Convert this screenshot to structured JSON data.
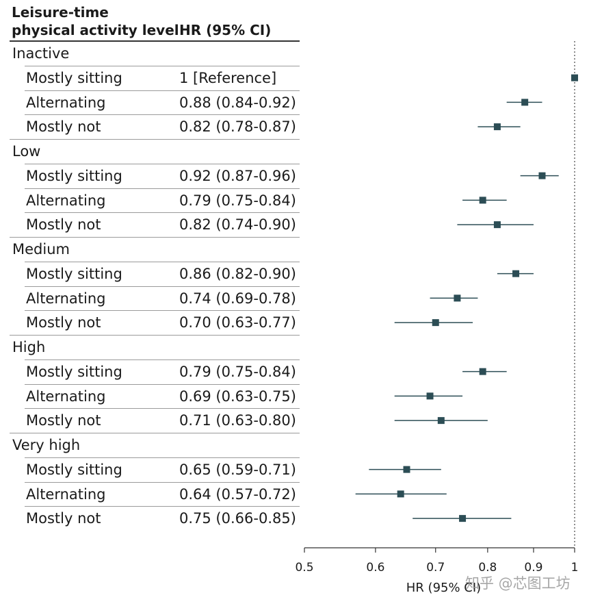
{
  "header": {
    "col1_line1": "Leisure-time",
    "col1_line2": "physical activity level",
    "col2": "HR (95% CI)"
  },
  "watermark": "知乎 @芯图工坊",
  "colors": {
    "marker": "#2c4d55",
    "ci_line": "#2c4d55",
    "ref_line": "#444444"
  },
  "rows": [
    {
      "type": "group",
      "label": "Inactive"
    },
    {
      "type": "sub",
      "label": "Mostly sitting",
      "hr_text": "1 [Reference]",
      "hr": 1.0,
      "lo": 1.0,
      "hi": 1.0
    },
    {
      "type": "sub",
      "label": "Alternating",
      "hr_text": "0.88 (0.84-0.92)",
      "hr": 0.88,
      "lo": 0.84,
      "hi": 0.92
    },
    {
      "type": "sub",
      "label": "Mostly not",
      "hr_text": "0.82 (0.78-0.87)",
      "hr": 0.82,
      "lo": 0.78,
      "hi": 0.87
    },
    {
      "type": "group",
      "label": "Low"
    },
    {
      "type": "sub",
      "label": "Mostly sitting",
      "hr_text": "0.92 (0.87-0.96)",
      "hr": 0.92,
      "lo": 0.87,
      "hi": 0.96
    },
    {
      "type": "sub",
      "label": "Alternating",
      "hr_text": "0.79 (0.75-0.84)",
      "hr": 0.79,
      "lo": 0.75,
      "hi": 0.84
    },
    {
      "type": "sub",
      "label": "Mostly not",
      "hr_text": "0.82 (0.74-0.90)",
      "hr": 0.82,
      "lo": 0.74,
      "hi": 0.9
    },
    {
      "type": "group",
      "label": "Medium"
    },
    {
      "type": "sub",
      "label": "Mostly sitting",
      "hr_text": "0.86 (0.82-0.90)",
      "hr": 0.86,
      "lo": 0.82,
      "hi": 0.9
    },
    {
      "type": "sub",
      "label": "Alternating",
      "hr_text": "0.74 (0.69-0.78)",
      "hr": 0.74,
      "lo": 0.69,
      "hi": 0.78
    },
    {
      "type": "sub",
      "label": "Mostly not",
      "hr_text": "0.70 (0.63-0.77)",
      "hr": 0.7,
      "lo": 0.63,
      "hi": 0.77
    },
    {
      "type": "group",
      "label": "High"
    },
    {
      "type": "sub",
      "label": "Mostly sitting",
      "hr_text": "0.79 (0.75-0.84)",
      "hr": 0.79,
      "lo": 0.75,
      "hi": 0.84
    },
    {
      "type": "sub",
      "label": "Alternating",
      "hr_text": "0.69 (0.63-0.75)",
      "hr": 0.69,
      "lo": 0.63,
      "hi": 0.75
    },
    {
      "type": "sub",
      "label": "Mostly not",
      "hr_text": "0.71 (0.63-0.80)",
      "hr": 0.71,
      "lo": 0.63,
      "hi": 0.8
    },
    {
      "type": "group",
      "label": "Very high"
    },
    {
      "type": "sub",
      "label": "Mostly sitting",
      "hr_text": "0.65 (0.59-0.71)",
      "hr": 0.65,
      "lo": 0.59,
      "hi": 0.71
    },
    {
      "type": "sub",
      "label": "Alternating",
      "hr_text": "0.64 (0.57-0.72)",
      "hr": 0.64,
      "lo": 0.57,
      "hi": 0.72
    },
    {
      "type": "sub",
      "label": "Mostly not",
      "hr_text": "0.75 (0.66-0.85)",
      "hr": 0.75,
      "lo": 0.66,
      "hi": 0.85
    }
  ],
  "chart_data": {
    "type": "forest",
    "xlabel": "HR (95% CI)",
    "xscale": "log",
    "xlim": [
      0.5,
      1
    ],
    "xticks": [
      0.5,
      0.6,
      0.7,
      0.8,
      0.9,
      1
    ],
    "xtick_labels": [
      "0.5",
      "0.6",
      "0.7",
      "0.8",
      "0.9",
      "1"
    ],
    "reference_line": 1,
    "reference_line_style": "dotted",
    "groups": [
      {
        "name": "Inactive",
        "items": [
          {
            "label": "Mostly sitting",
            "hr": 1.0,
            "lo": 1.0,
            "hi": 1.0
          },
          {
            "label": "Alternating",
            "hr": 0.88,
            "lo": 0.84,
            "hi": 0.92
          },
          {
            "label": "Mostly not",
            "hr": 0.82,
            "lo": 0.78,
            "hi": 0.87
          }
        ]
      },
      {
        "name": "Low",
        "items": [
          {
            "label": "Mostly sitting",
            "hr": 0.92,
            "lo": 0.87,
            "hi": 0.96
          },
          {
            "label": "Alternating",
            "hr": 0.79,
            "lo": 0.75,
            "hi": 0.84
          },
          {
            "label": "Mostly not",
            "hr": 0.82,
            "lo": 0.74,
            "hi": 0.9
          }
        ]
      },
      {
        "name": "Medium",
        "items": [
          {
            "label": "Mostly sitting",
            "hr": 0.86,
            "lo": 0.82,
            "hi": 0.9
          },
          {
            "label": "Alternating",
            "hr": 0.74,
            "lo": 0.69,
            "hi": 0.78
          },
          {
            "label": "Mostly not",
            "hr": 0.7,
            "lo": 0.63,
            "hi": 0.77
          }
        ]
      },
      {
        "name": "High",
        "items": [
          {
            "label": "Mostly sitting",
            "hr": 0.79,
            "lo": 0.75,
            "hi": 0.84
          },
          {
            "label": "Alternating",
            "hr": 0.69,
            "lo": 0.63,
            "hi": 0.75
          },
          {
            "label": "Mostly not",
            "hr": 0.71,
            "lo": 0.63,
            "hi": 0.8
          }
        ]
      },
      {
        "name": "Very high",
        "items": [
          {
            "label": "Mostly sitting",
            "hr": 0.65,
            "lo": 0.59,
            "hi": 0.71
          },
          {
            "label": "Alternating",
            "hr": 0.64,
            "lo": 0.57,
            "hi": 0.72
          },
          {
            "label": "Mostly not",
            "hr": 0.75,
            "lo": 0.66,
            "hi": 0.85
          }
        ]
      }
    ]
  }
}
